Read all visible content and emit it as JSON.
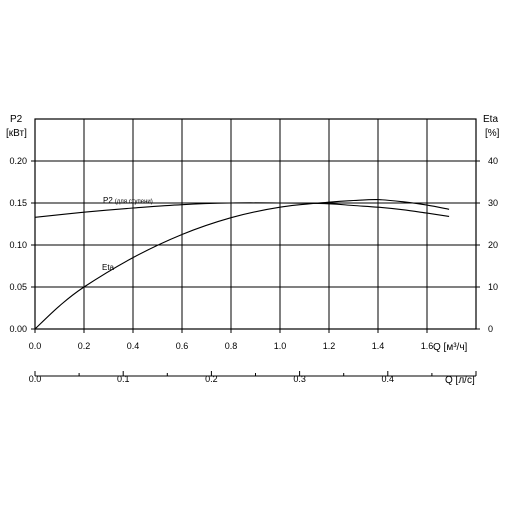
{
  "chart_data": {
    "type": "line",
    "left_axis": {
      "label_line1": "P2",
      "label_line2": "[кВт]",
      "ticks": [
        "0.00",
        "0.05",
        "0.10",
        "0.15",
        "0.20"
      ],
      "ylim": [
        0,
        0.25
      ]
    },
    "right_axis": {
      "label_line1": "Eta",
      "label_line2": "[%]",
      "ticks": [
        "0",
        "10",
        "20",
        "30",
        "40"
      ],
      "ylim": [
        0,
        50
      ]
    },
    "x_axis_primary": {
      "label": "Q [м³/ч]",
      "ticks": [
        "0.0",
        "0.2",
        "0.4",
        "0.6",
        "0.8",
        "1.0",
        "1.2",
        "1.4",
        "1.6"
      ],
      "xlim": [
        0,
        1.8
      ]
    },
    "x_axis_secondary": {
      "label": "Q [л/с]",
      "ticks": [
        "0.0",
        "0.1",
        "0.2",
        "0.3",
        "0.4"
      ],
      "xlim": [
        0,
        0.5
      ]
    },
    "grid": true,
    "series": [
      {
        "name": "P2",
        "name_suffix": "(для ступени)",
        "axis": "left",
        "x": [
          0,
          0.2,
          0.4,
          0.6,
          0.8,
          1.0,
          1.2,
          1.3,
          1.4,
          1.5,
          1.6,
          1.69
        ],
        "y": [
          0.133,
          0.139,
          0.144,
          0.148,
          0.15,
          0.15,
          0.149,
          0.147,
          0.145,
          0.142,
          0.138,
          0.134
        ]
      },
      {
        "name": "Eta",
        "axis": "right",
        "x": [
          0,
          0.1,
          0.2,
          0.4,
          0.6,
          0.8,
          1.0,
          1.2,
          1.3,
          1.4,
          1.5,
          1.6,
          1.69
        ],
        "y": [
          0,
          5.5,
          10,
          17,
          22.5,
          26.5,
          29,
          30.2,
          30.6,
          30.8,
          30.3,
          29.5,
          28.5
        ]
      }
    ]
  }
}
